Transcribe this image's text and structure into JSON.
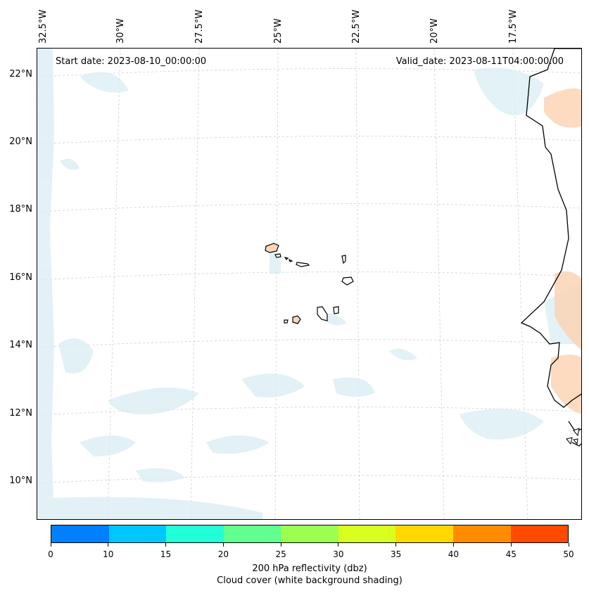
{
  "lon_labels": [
    "32.5°W",
    "30°W",
    "27.5°W",
    "25°W",
    "22.5°W",
    "20°W",
    "17.5°W"
  ],
  "lat_labels": [
    "22°N",
    "20°N",
    "18°N",
    "16°N",
    "14°N",
    "12°N",
    "10°N"
  ],
  "start_date": "Start date: 2023-08-10_00:00:00",
  "valid_date": "Valid_date: 2023-08-11T04:00:00.00",
  "colorbar": {
    "colors": [
      "#0080ff",
      "#00c8ff",
      "#22ffd8",
      "#60ff90",
      "#9cff50",
      "#d8ff20",
      "#ffd800",
      "#ff8c00",
      "#ff4a00"
    ],
    "ticks": [
      "0",
      "10",
      "15",
      "20",
      "25",
      "30",
      "35",
      "40",
      "45",
      "50"
    ],
    "label_line1": "200 hPa reflectivity (dbz)",
    "label_line2": "Cloud cover (white background shading)"
  },
  "colors": {
    "cloud": "#d9edf3",
    "land_shade": "#fbd5b6",
    "grid": "#cccccc"
  }
}
